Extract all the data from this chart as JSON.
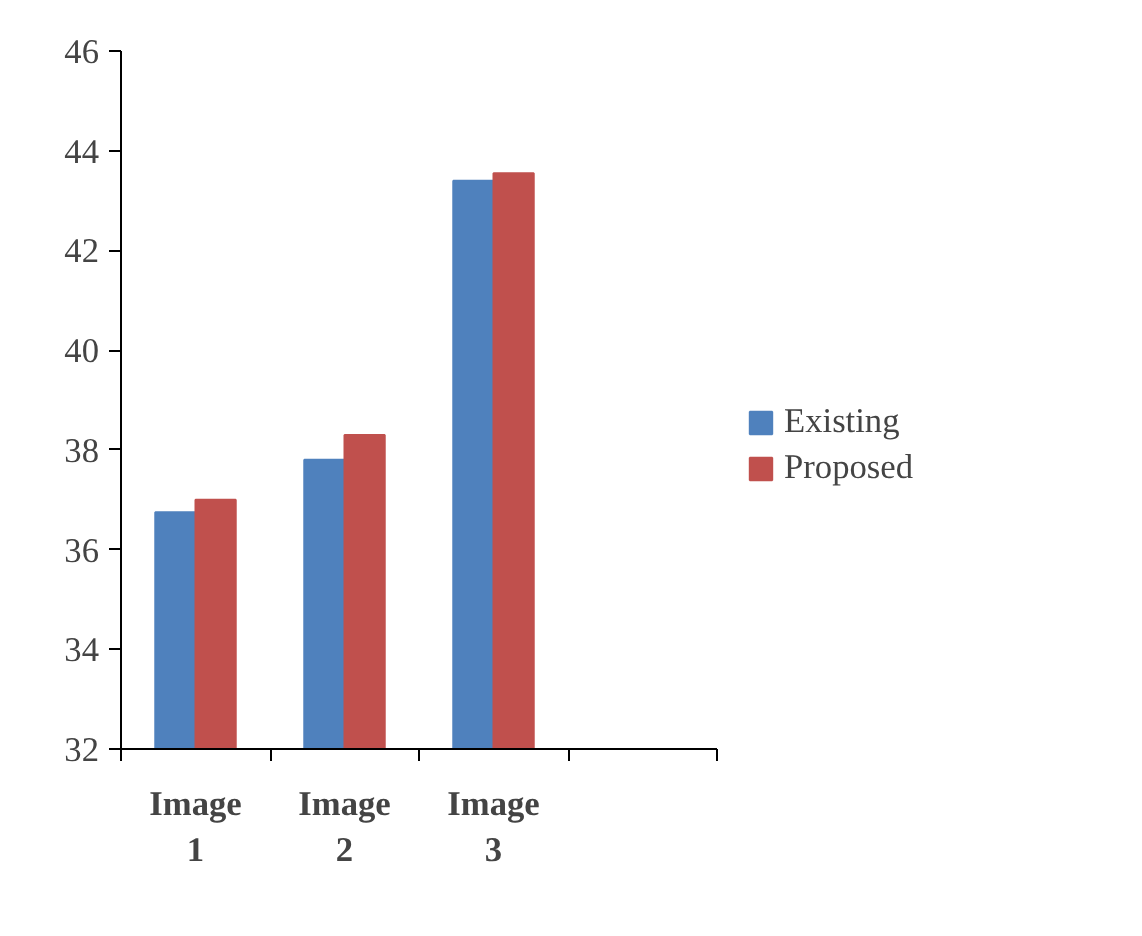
{
  "chart_data": {
    "type": "bar",
    "categories": [
      "Image 1",
      "Image 2",
      "Image 3",
      null
    ],
    "series": [
      {
        "name": "Existing",
        "color": "#4f81bd",
        "values": [
          36.75,
          37.8,
          43.4,
          null
        ]
      },
      {
        "name": "Proposed",
        "color": "#c0504d",
        "values": [
          37.0,
          38.3,
          43.55,
          null
        ]
      }
    ],
    "ylim": [
      32,
      46
    ],
    "yticks": [
      32,
      34,
      36,
      38,
      40,
      42,
      44,
      46
    ],
    "grid": false,
    "legend": "right"
  }
}
